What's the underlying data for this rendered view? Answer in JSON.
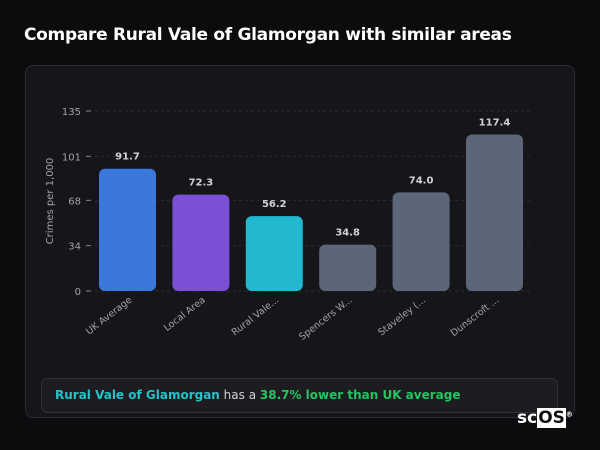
{
  "title": "Compare Rural Vale of Glamorgan with similar areas",
  "chart_data": {
    "type": "bar",
    "ylabel": "Crimes per 1,000",
    "yticks": [
      0,
      34,
      68,
      101,
      135
    ],
    "ylim": [
      0,
      135
    ],
    "categories": [
      "UK Average",
      "Local Area",
      "Rural Vale...",
      "Spencers W...",
      "Staveley (...",
      "Dunscroft ..."
    ],
    "values": [
      91.7,
      72.3,
      56.2,
      34.8,
      74.0,
      117.4
    ],
    "labels": [
      "91.7",
      "72.3",
      "56.2",
      "34.8",
      "74.0",
      "117.4"
    ],
    "colors": [
      "#3b78dc",
      "#7b4fd6",
      "#22b8cf",
      "#5b6678",
      "#5b6678",
      "#5b6678"
    ],
    "grid": true
  },
  "footer": {
    "area": "Rural Vale of Glamorgan",
    "mid": " has a ",
    "stat": "38.7% lower than UK average"
  },
  "logo": {
    "a": "sc",
    "b": "OS",
    "c": "®"
  }
}
